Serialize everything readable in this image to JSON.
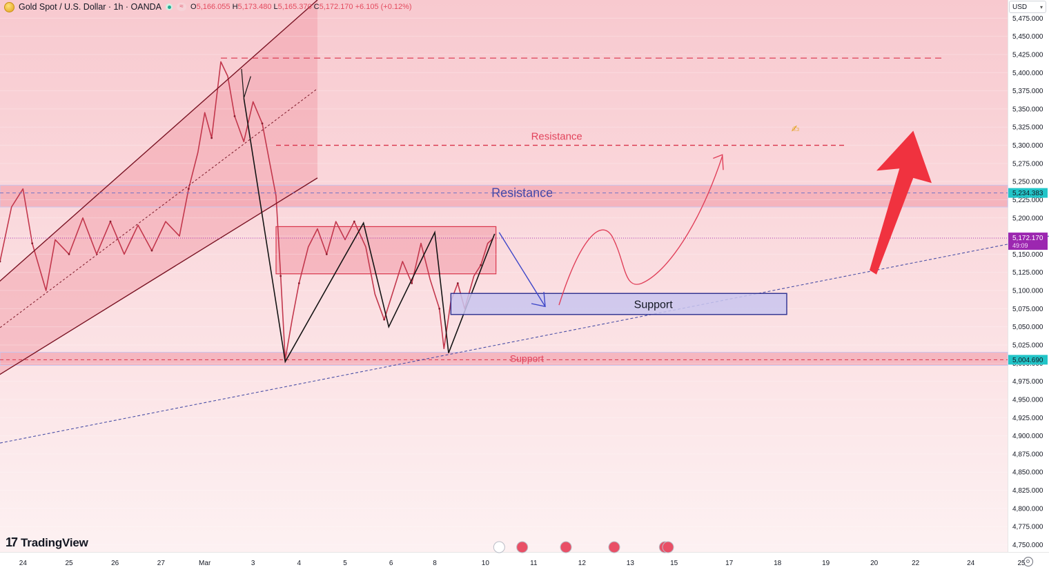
{
  "header": {
    "symbol_title": "Gold Spot / U.S. Dollar · 1h · OANDA",
    "ohlc": {
      "open": "5,166.055",
      "high": "5,173.480",
      "low": "5,165.370",
      "close": "5,172.170",
      "change": "+6.105 (+0.12%)"
    }
  },
  "currency_select": {
    "value": "USD"
  },
  "logo": {
    "text": "TradingView"
  },
  "colors": {
    "resistance_text": "#e2445c",
    "zone_border": "#2a2e8f",
    "support_fill": "#c9c6ee",
    "up_arrow": "#f0323f",
    "trend_line": "#4a4fa6",
    "current_price_tag": "#9c27b0",
    "level_tag": "#22c5c8"
  },
  "chart_data": {
    "type": "line",
    "ylim": [
      4740,
      5500
    ],
    "x_domain": [
      0,
      22.8
    ],
    "y_ticks": [
      4750,
      4775,
      4800,
      4825,
      4850,
      4875,
      4900,
      4925,
      4950,
      4975,
      5000,
      5025,
      5050,
      5075,
      5100,
      5125,
      5150,
      5175,
      5200,
      5225,
      5250,
      5275,
      5300,
      5325,
      5350,
      5375,
      5400,
      5425,
      5450,
      5475
    ],
    "x_ticks": [
      {
        "label": "24",
        "x": 0.5
      },
      {
        "label": "25",
        "x": 1.5
      },
      {
        "label": "26",
        "x": 2.5
      },
      {
        "label": "27",
        "x": 3.5
      },
      {
        "label": "Mar",
        "x": 4.45
      },
      {
        "label": "3",
        "x": 5.5
      },
      {
        "label": "4",
        "x": 6.5
      },
      {
        "label": "5",
        "x": 7.5
      },
      {
        "label": "6",
        "x": 8.5
      },
      {
        "label": "8",
        "x": 9.45
      },
      {
        "label": "10",
        "x": 10.55
      },
      {
        "label": "11",
        "x": 11.6
      },
      {
        "label": "12",
        "x": 12.65
      },
      {
        "label": "13",
        "x": 13.7
      },
      {
        "label": "15",
        "x": 14.65
      },
      {
        "label": "17",
        "x": 15.85
      },
      {
        "label": "18",
        "x": 16.9
      },
      {
        "label": "19",
        "x": 17.95
      },
      {
        "label": "20",
        "x": 19.0
      },
      {
        "label": "22",
        "x": 19.9
      },
      {
        "label": "24",
        "x": 21.1
      },
      {
        "label": "25",
        "x": 22.2
      }
    ],
    "price_path": [
      [
        0,
        5140
      ],
      [
        0.25,
        5215
      ],
      [
        0.5,
        5240
      ],
      [
        0.7,
        5165
      ],
      [
        1.0,
        5100
      ],
      [
        1.2,
        5170
      ],
      [
        1.5,
        5150
      ],
      [
        1.8,
        5200
      ],
      [
        2.1,
        5150
      ],
      [
        2.4,
        5195
      ],
      [
        2.7,
        5150
      ],
      [
        3.0,
        5190
      ],
      [
        3.3,
        5155
      ],
      [
        3.6,
        5195
      ],
      [
        3.9,
        5175
      ],
      [
        4.1,
        5240
      ],
      [
        4.3,
        5290
      ],
      [
        4.45,
        5345
      ],
      [
        4.6,
        5310
      ],
      [
        4.8,
        5415
      ],
      [
        4.95,
        5395
      ],
      [
        5.1,
        5340
      ],
      [
        5.3,
        5305
      ],
      [
        5.5,
        5360
      ],
      [
        5.7,
        5330
      ],
      [
        5.85,
        5280
      ],
      [
        6.0,
        5230
      ],
      [
        6.1,
        5120
      ],
      [
        6.2,
        5005
      ],
      [
        6.35,
        5060
      ],
      [
        6.5,
        5110
      ],
      [
        6.7,
        5160
      ],
      [
        6.9,
        5185
      ],
      [
        7.1,
        5150
      ],
      [
        7.3,
        5195
      ],
      [
        7.5,
        5170
      ],
      [
        7.7,
        5195
      ],
      [
        7.95,
        5160
      ],
      [
        8.15,
        5095
      ],
      [
        8.35,
        5060
      ],
      [
        8.55,
        5100
      ],
      [
        8.75,
        5140
      ],
      [
        8.95,
        5110
      ],
      [
        9.15,
        5165
      ],
      [
        9.35,
        5115
      ],
      [
        9.55,
        5075
      ],
      [
        9.65,
        5020
      ],
      [
        9.8,
        5085
      ],
      [
        9.95,
        5110
      ],
      [
        10.1,
        5075
      ],
      [
        10.3,
        5120
      ],
      [
        10.45,
        5135
      ],
      [
        10.6,
        5165
      ],
      [
        10.72,
        5172
      ]
    ],
    "annotations": {
      "resistance_zone": [
        5215,
        5245
      ],
      "resistance_level": 5234.383,
      "resistance_label": "Resistance",
      "upper_resistance_level": 5300,
      "upper_resistance_label": "Resistance",
      "top_level": 5420,
      "support_zone": [
        4997,
        5015
      ],
      "support_level": 5004.69,
      "support_label": "Support",
      "consolidation_box": {
        "x": [
          6.0,
          10.78
        ],
        "y": [
          5123,
          5188
        ]
      },
      "target_support_box": {
        "x": [
          9.8,
          17.1
        ],
        "y": [
          5067,
          5096
        ]
      },
      "target_support_label": "Support",
      "current_price": "5,172.170",
      "countdown": "49:09",
      "resistance_tag": "5,234.383",
      "support_tag": "5,004.690"
    }
  }
}
